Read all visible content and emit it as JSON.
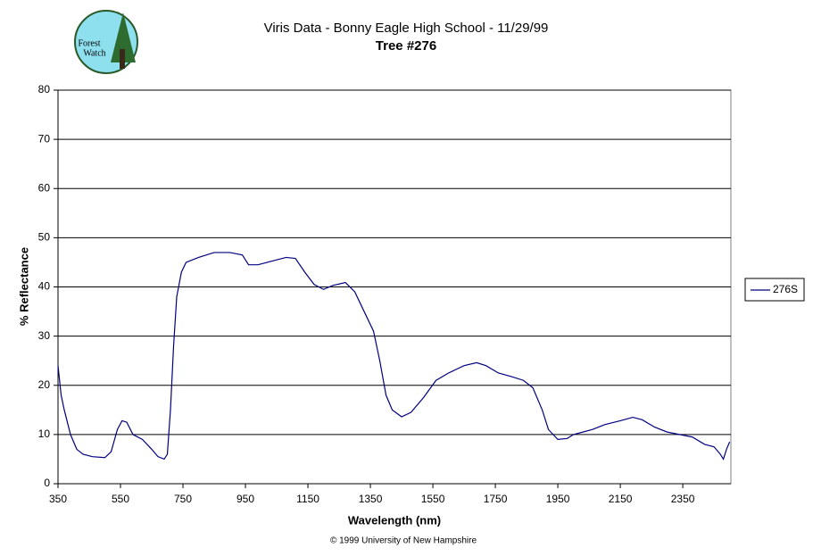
{
  "logo": {
    "line1": "Forest",
    "line2": "Watch"
  },
  "footer": "© 1999 University of New Hampshire",
  "chart_data": {
    "type": "line",
    "title": "Viris Data - Bonny Eagle High School - 11/29/99",
    "subtitle": "Tree #276",
    "x_label": "Wavelength (nm)",
    "y_label": "% Reflectance",
    "xlim": [
      350,
      2504
    ],
    "ylim": [
      0,
      80
    ],
    "xticks": [
      350,
      550,
      750,
      950,
      1150,
      1350,
      1550,
      1750,
      1950,
      2150,
      2350
    ],
    "yticks": [
      0,
      10,
      20,
      30,
      40,
      50,
      60,
      70,
      80
    ],
    "grid": true,
    "legend": "right",
    "x": [
      350,
      360,
      370,
      390,
      410,
      430,
      460,
      500,
      520,
      540,
      555,
      570,
      590,
      620,
      650,
      670,
      690,
      700,
      710,
      720,
      730,
      745,
      760,
      800,
      850,
      900,
      940,
      960,
      990,
      1020,
      1050,
      1080,
      1110,
      1140,
      1170,
      1200,
      1230,
      1270,
      1300,
      1330,
      1360,
      1380,
      1400,
      1420,
      1450,
      1480,
      1520,
      1560,
      1600,
      1650,
      1690,
      1720,
      1760,
      1800,
      1840,
      1870,
      1900,
      1920,
      1950,
      1980,
      2000,
      2030,
      2060,
      2100,
      2150,
      2190,
      2220,
      2260,
      2300,
      2340,
      2380,
      2420,
      2450,
      2470,
      2480,
      2490,
      2500
    ],
    "series": [
      {
        "name": "276S",
        "color": "#000080",
        "values": [
          24,
          18,
          15,
          10,
          7,
          6,
          5.5,
          5.3,
          6.5,
          11,
          12.8,
          12.5,
          10,
          9,
          7,
          5.5,
          5,
          6,
          15,
          28,
          38,
          43,
          45,
          46,
          47,
          47,
          46.5,
          44.5,
          44.5,
          45,
          45.5,
          46,
          45.8,
          43,
          40.5,
          39.5,
          40.3,
          40.9,
          39,
          35,
          31,
          25,
          18,
          15,
          13.6,
          14.5,
          17.5,
          21,
          22.5,
          24,
          24.6,
          24,
          22.5,
          21.8,
          21,
          19.5,
          15,
          11,
          9,
          9.2,
          10,
          10.5,
          11,
          12,
          12.8,
          13.5,
          13,
          11.5,
          10.5,
          10,
          9.5,
          8,
          7.5,
          6,
          5,
          7,
          8.5
        ]
      }
    ]
  }
}
